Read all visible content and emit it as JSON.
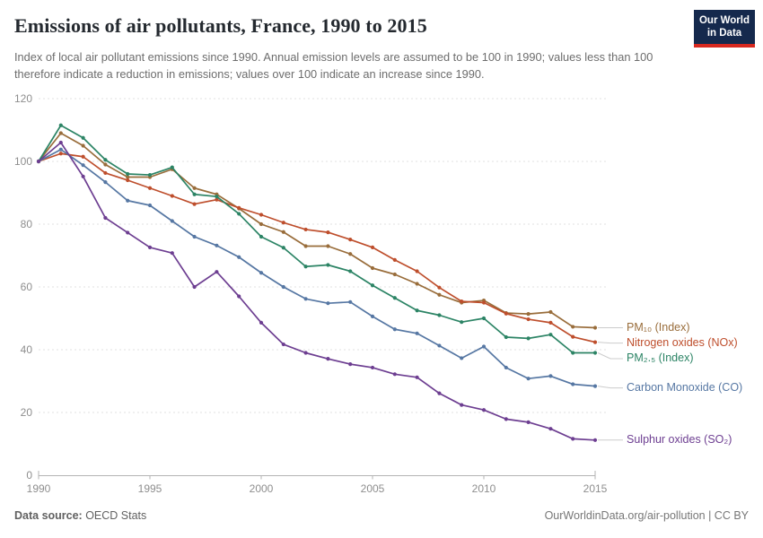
{
  "header": {
    "title": "Emissions of air pollutants, France, 1990 to 2015",
    "subtitle": "Index of local air pollutant emissions since 1990. Annual emission levels are assumed to be 100 in 1990; values less than 100 therefore indicate a reduction in emissions; values over 100 indicate an increase since 1990.",
    "logo": {
      "line1": "Our World",
      "line2": "in Data",
      "bg_color": "#15294d",
      "stripe_color": "#d7281f"
    }
  },
  "footer": {
    "source_label": "Data source:",
    "source_value": " OECD Stats",
    "credit": "OurWorldinData.org/air-pollution | CC BY"
  },
  "chart_data": {
    "type": "line",
    "title": "Emissions of air pollutants, France, 1990 to 2015",
    "xlabel": "",
    "ylabel": "",
    "ylim": [
      0,
      120
    ],
    "xlim": [
      1990,
      2015
    ],
    "grid": "horizontal-dashed",
    "legend_position": "right-of-line-ends",
    "x": [
      1990,
      1991,
      1992,
      1993,
      1994,
      1995,
      1996,
      1997,
      1998,
      1999,
      2000,
      2001,
      2002,
      2003,
      2004,
      2005,
      2006,
      2007,
      2008,
      2009,
      2010,
      2011,
      2012,
      2013,
      2014,
      2015
    ],
    "x_ticks": [
      1990,
      1995,
      2000,
      2005,
      2010,
      2015
    ],
    "y_ticks": [
      0,
      20,
      40,
      60,
      80,
      100,
      120
    ],
    "series": [
      {
        "name": "PM₁₀ (Index)",
        "color": "#996D3B",
        "values": [
          100,
          109,
          105,
          99,
          95,
          95,
          97.5,
          91.5,
          89.5,
          85,
          80,
          77.5,
          73,
          73,
          70.5,
          66,
          64,
          61,
          57.5,
          55,
          55.7,
          51.7,
          51.4,
          52,
          47.3,
          47
        ]
      },
      {
        "name": "Nitrogen oxides (NOx)",
        "color": "#BE4E2C",
        "values": [
          100,
          102.5,
          101.5,
          96.3,
          94,
          91.5,
          89,
          86.4,
          87.8,
          85.2,
          83,
          80.5,
          78.3,
          77.4,
          75.1,
          72.6,
          68.6,
          65,
          59.8,
          55.4,
          55,
          51.5,
          49.7,
          48.6,
          44.1,
          42.4
        ]
      },
      {
        "name": "PM₂.₅ (Index)",
        "color": "#2C8465",
        "values": [
          100,
          111.5,
          107.5,
          100.5,
          96,
          95.7,
          98.1,
          89.5,
          88.8,
          83.3,
          76,
          72.5,
          66.5,
          67,
          65,
          60.5,
          56.5,
          52.5,
          51,
          48.8,
          50,
          44,
          43.6,
          44.8,
          39,
          39
        ]
      },
      {
        "name": "Carbon Monoxide (CO)",
        "color": "#5677A3",
        "values": [
          100,
          103.8,
          98.8,
          93.4,
          87.5,
          86,
          81,
          76,
          73.2,
          69.5,
          64.5,
          60,
          56.2,
          54.8,
          55.2,
          50.6,
          46.5,
          45.2,
          41.3,
          37.3,
          41,
          34.3,
          30.8,
          31.6,
          29,
          28.4
        ]
      },
      {
        "name": "Sulphur oxides (SO₂)",
        "color": "#6D3E91",
        "values": [
          100,
          106,
          95.2,
          82,
          77.3,
          72.6,
          70.8,
          60,
          64.8,
          57,
          48.6,
          41.7,
          39,
          37.1,
          35.4,
          34.3,
          32.2,
          31.2,
          26.1,
          22.4,
          20.8,
          17.9,
          16.9,
          14.8,
          11.6,
          11.2
        ]
      }
    ]
  }
}
